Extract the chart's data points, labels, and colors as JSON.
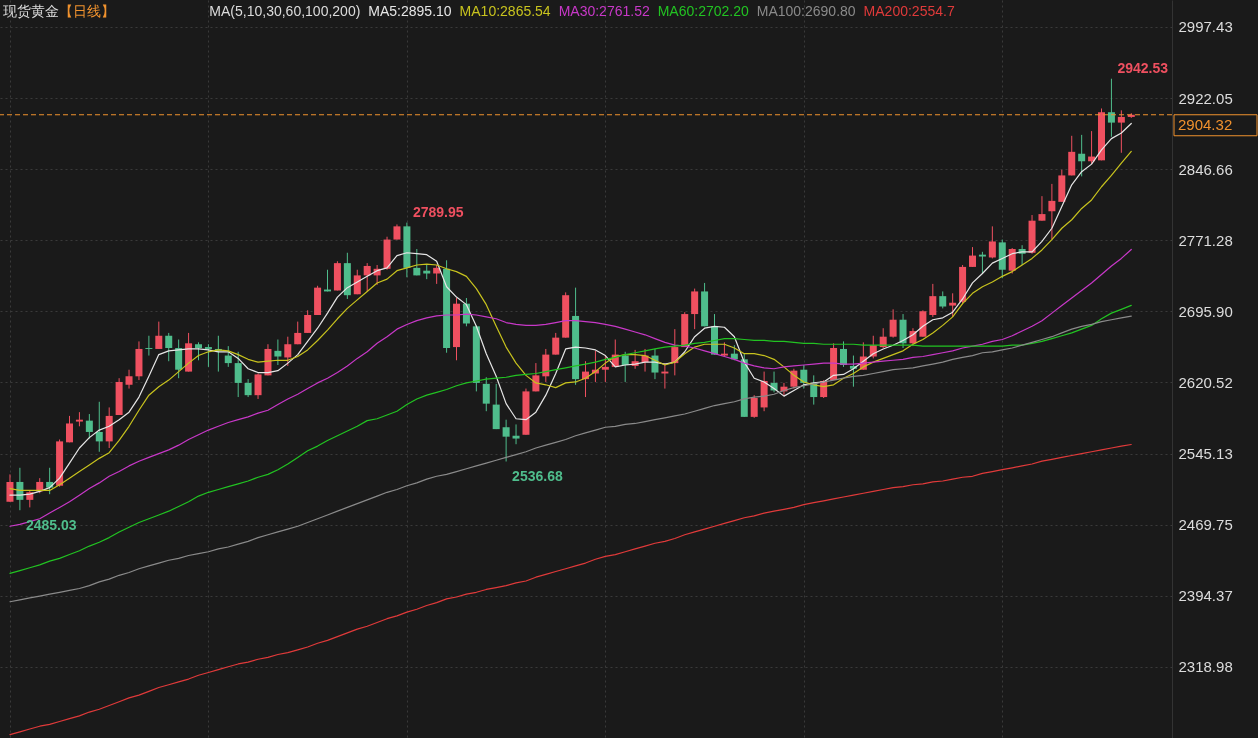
{
  "chart_data": {
    "type": "candlestick",
    "title": "现货黄金",
    "subtitle": "【日线】",
    "legend_title": "MA(5,10,30,60,100,200)",
    "categories": [
      null,
      null,
      null,
      null,
      null,
      null,
      null,
      null,
      null,
      null,
      null,
      null,
      null,
      null,
      null,
      null,
      null,
      null,
      null,
      null,
      null,
      null,
      null,
      null,
      null,
      null,
      null,
      null,
      null,
      null,
      null,
      null,
      null,
      null,
      null,
      null,
      null,
      null,
      null,
      null,
      null,
      null,
      null,
      null,
      null,
      null,
      null,
      null,
      null,
      null,
      null,
      null,
      null,
      null,
      null,
      null,
      null,
      null,
      null,
      null,
      null,
      null,
      null,
      null,
      null,
      null,
      null,
      null,
      null,
      null,
      null,
      null,
      null,
      null,
      null,
      null,
      null,
      null,
      null,
      null,
      null,
      null,
      null,
      null,
      null,
      null,
      null,
      null,
      null,
      null,
      null,
      null,
      null,
      null,
      null,
      null,
      null,
      null,
      null,
      null,
      null,
      null,
      null,
      null,
      null,
      null,
      null,
      null,
      null,
      null,
      null,
      null,
      null,
      null
    ],
    "ohlc": [
      [
        2494,
        2523,
        2494,
        2515
      ],
      [
        2515,
        2530,
        2485.03,
        2496
      ],
      [
        2496,
        2506,
        2488,
        2504
      ],
      [
        2505,
        2519,
        2503,
        2515
      ],
      [
        2515,
        2530,
        2502,
        2509
      ],
      [
        2511,
        2560,
        2510,
        2558
      ],
      [
        2557,
        2585,
        2557,
        2577
      ],
      [
        2579,
        2589,
        2574,
        2581
      ],
      [
        2580,
        2587,
        2561,
        2568
      ],
      [
        2568,
        2600,
        2547,
        2558
      ],
      [
        2558,
        2594,
        2551,
        2585
      ],
      [
        2586,
        2625,
        2586,
        2621
      ],
      [
        2618,
        2634,
        2614,
        2627
      ],
      [
        2627,
        2664,
        2623,
        2656
      ],
      [
        2657,
        2670,
        2649,
        2656
      ],
      [
        2656,
        2685,
        2656,
        2670
      ],
      [
        2670,
        2673,
        2643,
        2657
      ],
      [
        2657,
        2666,
        2625,
        2634
      ],
      [
        2632,
        2673,
        2632,
        2662
      ],
      [
        2661,
        2663,
        2644,
        2657
      ],
      [
        2658,
        2661,
        2637,
        2656
      ],
      [
        2656,
        2670,
        2632,
        2654
      ],
      [
        2649,
        2659,
        2637,
        2641
      ],
      [
        2641,
        2653,
        2605,
        2620
      ],
      [
        2620,
        2624,
        2605,
        2607
      ],
      [
        2607,
        2630,
        2603,
        2629
      ],
      [
        2628,
        2661,
        2628,
        2656
      ],
      [
        2654,
        2666,
        2639,
        2648
      ],
      [
        2647,
        2669,
        2638,
        2661
      ],
      [
        2661,
        2685,
        2661,
        2673
      ],
      [
        2673,
        2697,
        2673,
        2692
      ],
      [
        2692,
        2723,
        2692,
        2721
      ],
      [
        2719,
        2740,
        2717,
        2717
      ],
      [
        2718,
        2749,
        2718,
        2747
      ],
      [
        2747,
        2758,
        2709,
        2713
      ],
      [
        2714,
        2740,
        2714,
        2734
      ],
      [
        2734,
        2747,
        2717,
        2744
      ],
      [
        2734,
        2745,
        2724,
        2741
      ],
      [
        2741,
        2775,
        2740,
        2772
      ],
      [
        2772,
        2788,
        2772,
        2786
      ],
      [
        2786,
        2789.95,
        2732,
        2742
      ],
      [
        2742,
        2762,
        2734,
        2734
      ],
      [
        2739,
        2745,
        2730,
        2736
      ],
      [
        2736,
        2745,
        2725,
        2742
      ],
      [
        2741,
        2750,
        2652,
        2657
      ],
      [
        2658,
        2710,
        2644,
        2704
      ],
      [
        2704,
        2710,
        2680,
        2683
      ],
      [
        2680,
        2681,
        2611,
        2620
      ],
      [
        2619,
        2626,
        2590,
        2598
      ],
      [
        2597,
        2619,
        2571,
        2571
      ],
      [
        2573,
        2581,
        2536.68,
        2563
      ],
      [
        2564,
        2576,
        2555,
        2561
      ],
      [
        2565,
        2614,
        2565,
        2611
      ],
      [
        2611,
        2641,
        2611,
        2628
      ],
      [
        2627,
        2656,
        2621,
        2650
      ],
      [
        2650,
        2673,
        2650,
        2668
      ],
      [
        2668,
        2716,
        2668,
        2713
      ],
      [
        2691,
        2721,
        2618,
        2624
      ],
      [
        2624,
        2643,
        2605,
        2632
      ],
      [
        2630,
        2654,
        2621,
        2634
      ],
      [
        2634,
        2649,
        2621,
        2637
      ],
      [
        2637,
        2666,
        2637,
        2650
      ],
      [
        2649,
        2653,
        2621,
        2639
      ],
      [
        2638,
        2655,
        2635,
        2643
      ],
      [
        2642,
        2656,
        2632,
        2649
      ],
      [
        2649,
        2656,
        2624,
        2631
      ],
      [
        2630,
        2641,
        2614,
        2632
      ],
      [
        2641,
        2677,
        2628,
        2658
      ],
      [
        2658,
        2695,
        2658,
        2693
      ],
      [
        2693,
        2720,
        2677,
        2717
      ],
      [
        2717,
        2726,
        2680,
        2680
      ],
      [
        2680,
        2693,
        2650,
        2650
      ],
      [
        2649,
        2663,
        2648,
        2651
      ],
      [
        2651,
        2660,
        2644,
        2645
      ],
      [
        2645,
        2651,
        2584,
        2584
      ],
      [
        2584,
        2607,
        2583,
        2604
      ],
      [
        2594,
        2632,
        2590,
        2622
      ],
      [
        2620,
        2632,
        2610,
        2612
      ],
      [
        2611,
        2620,
        2606,
        2616
      ],
      [
        2616,
        2635,
        2614,
        2633
      ],
      [
        2634,
        2639,
        2614,
        2620
      ],
      [
        2620,
        2628,
        2597,
        2605
      ],
      [
        2605,
        2623,
        2604,
        2622
      ],
      [
        2623,
        2662,
        2623,
        2657
      ],
      [
        2656,
        2664,
        2637,
        2639
      ],
      [
        2638,
        2649,
        2616,
        2635
      ],
      [
        2634,
        2663,
        2634,
        2648
      ],
      [
        2648,
        2670,
        2646,
        2660
      ],
      [
        2658,
        2678,
        2657,
        2669
      ],
      [
        2669,
        2698,
        2668,
        2687
      ],
      [
        2687,
        2693,
        2657,
        2662
      ],
      [
        2662,
        2678,
        2659,
        2675
      ],
      [
        2669,
        2697,
        2669,
        2696
      ],
      [
        2692,
        2725,
        2690,
        2712
      ],
      [
        2712,
        2717,
        2699,
        2701
      ],
      [
        2702,
        2715,
        2690,
        2705
      ],
      [
        2706,
        2745,
        2704,
        2743
      ],
      [
        2743,
        2764,
        2743,
        2755
      ],
      [
        2756,
        2759,
        2736,
        2754
      ],
      [
        2753,
        2786,
        2752,
        2770
      ],
      [
        2769,
        2772,
        2731,
        2740
      ],
      [
        2739,
        2763,
        2736,
        2762
      ],
      [
        2762,
        2766,
        2745,
        2757
      ],
      [
        2758,
        2798,
        2757,
        2792
      ],
      [
        2792,
        2818,
        2792,
        2799
      ],
      [
        2802,
        2831,
        2772,
        2813
      ],
      [
        2812,
        2846,
        2812,
        2840
      ],
      [
        2840,
        2882,
        2840,
        2865
      ],
      [
        2863,
        2883,
        2839,
        2855
      ],
      [
        2855,
        2887,
        2852,
        2860
      ],
      [
        2856,
        2911,
        2856,
        2907
      ],
      [
        2907,
        2942.53,
        2881,
        2896
      ],
      [
        2896,
        2909,
        2864,
        2902
      ],
      [
        2902,
        2906,
        2901,
        2904.32
      ]
    ],
    "colors": [
      "#ef5060",
      "#4fbd8c",
      "#ef5060",
      "#ef5060",
      "#4fbd8c",
      "#ef5060",
      "#ef5060",
      "#ef5060",
      "#4fbd8c",
      "#4fbd8c",
      "#ef5060",
      "#ef5060",
      "#ef5060",
      "#ef5060",
      "#4fbd8c",
      "#ef5060",
      "#4fbd8c",
      "#4fbd8c",
      "#ef5060",
      "#4fbd8c",
      "#4fbd8c",
      "#4fbd8c",
      "#4fbd8c",
      "#4fbd8c",
      "#4fbd8c",
      "#ef5060",
      "#ef5060",
      "#4fbd8c",
      "#ef5060",
      "#ef5060",
      "#ef5060",
      "#ef5060",
      "#4fbd8c",
      "#ef5060",
      "#4fbd8c",
      "#ef5060",
      "#ef5060",
      "#ef5060",
      "#ef5060",
      "#ef5060",
      "#4fbd8c",
      "#4fbd8c",
      "#4fbd8c",
      "#ef5060",
      "#4fbd8c",
      "#ef5060",
      "#4fbd8c",
      "#4fbd8c",
      "#4fbd8c",
      "#4fbd8c",
      "#4fbd8c",
      "#4fbd8c",
      "#ef5060",
      "#ef5060",
      "#ef5060",
      "#ef5060",
      "#ef5060",
      "#4fbd8c",
      "#ef5060",
      "#ef5060",
      "#ef5060",
      "#ef5060",
      "#4fbd8c",
      "#ef5060",
      "#ef5060",
      "#4fbd8c",
      "#ef5060",
      "#ef5060",
      "#ef5060",
      "#ef5060",
      "#4fbd8c",
      "#4fbd8c",
      "#ef5060",
      "#4fbd8c",
      "#4fbd8c",
      "#ef5060",
      "#ef5060",
      "#4fbd8c",
      "#ef5060",
      "#ef5060",
      "#4fbd8c",
      "#4fbd8c",
      "#ef5060",
      "#ef5060",
      "#4fbd8c",
      "#4fbd8c",
      "#ef5060",
      "#ef5060",
      "#ef5060",
      "#ef5060",
      "#4fbd8c",
      "#ef5060",
      "#ef5060",
      "#ef5060",
      "#4fbd8c",
      "#ef5060",
      "#ef5060",
      "#ef5060",
      "#4fbd8c",
      "#ef5060",
      "#4fbd8c",
      "#ef5060",
      "#4fbd8c",
      "#ef5060",
      "#ef5060",
      "#ef5060",
      "#ef5060",
      "#ef5060",
      "#4fbd8c",
      "#ef5060",
      "#ef5060",
      "#4fbd8c",
      "#ef5060",
      "#ef5060"
    ],
    "value_labels": [
      null,
      "2485.03",
      null,
      null,
      null,
      null,
      null,
      null,
      null,
      null,
      null,
      null,
      null,
      null,
      null,
      null,
      null,
      null,
      null,
      null,
      null,
      null,
      null,
      null,
      null,
      null,
      null,
      null,
      null,
      null,
      null,
      null,
      null,
      null,
      null,
      null,
      null,
      null,
      null,
      null,
      "2789.95",
      null,
      null,
      null,
      null,
      null,
      null,
      null,
      null,
      null,
      "2536.68",
      null,
      null,
      null,
      null,
      null,
      null,
      null,
      null,
      null,
      null,
      null,
      null,
      null,
      null,
      null,
      null,
      null,
      null,
      null,
      null,
      null,
      null,
      null,
      null,
      null,
      null,
      null,
      null,
      null,
      null,
      null,
      null,
      null,
      null,
      null,
      null,
      null,
      null,
      null,
      null,
      null,
      null,
      null,
      null,
      null,
      null,
      null,
      null,
      null,
      null,
      null,
      null,
      null,
      null,
      null,
      null,
      null,
      null,
      null,
      null,
      "2942.53",
      null,
      null
    ],
    "series": [
      {
        "type": "line",
        "name": "MA5:2895.10",
        "color": "#e6e6e6",
        "values": [
          2501,
          2501,
          2502,
          2505,
          2509,
          2519,
          2535,
          2551,
          2562,
          2570,
          2574,
          2581,
          2589,
          2605,
          2627,
          2650,
          2654,
          2655,
          2656,
          2656,
          2655,
          2653,
          2653,
          2646,
          2635,
          2631,
          2631,
          2633,
          2641,
          2650,
          2664,
          2678,
          2694,
          2711,
          2721,
          2727,
          2733,
          2739,
          2742,
          2755,
          2758,
          2757,
          2756,
          2749,
          2722,
          2711,
          2703,
          2680,
          2651,
          2627,
          2598,
          2582,
          2581,
          2589,
          2607,
          2630,
          2656,
          2658,
          2657,
          2655,
          2649,
          2637,
          2639,
          2640,
          2642,
          2642,
          2640,
          2642,
          2653,
          2669,
          2678,
          2680,
          2679,
          2669,
          2642,
          2625,
          2621,
          2614,
          2606,
          2612,
          2618,
          2620,
          2621,
          2628,
          2629,
          2635,
          2643,
          2651,
          2656,
          2660,
          2665,
          2671,
          2680,
          2687,
          2689,
          2695,
          2709,
          2726,
          2736,
          2747,
          2752,
          2757,
          2759,
          2759,
          2770,
          2784,
          2807,
          2830,
          2844,
          2852,
          2867,
          2879,
          2885,
          2895.1
        ]
      },
      {
        "type": "line",
        "name": "MA10:2865.54",
        "color": "#c8c31e",
        "values": [
          2508,
          2506,
          2506,
          2506,
          2506,
          2512,
          2519,
          2526,
          2533,
          2540,
          2546,
          2559,
          2574,
          2591,
          2607,
          2616,
          2623,
          2632,
          2641,
          2649,
          2653,
          2655,
          2654,
          2650,
          2645,
          2642,
          2643,
          2644,
          2644,
          2648,
          2655,
          2665,
          2676,
          2688,
          2699,
          2708,
          2717,
          2726,
          2730,
          2739,
          2742,
          2745,
          2746,
          2745,
          2741,
          2738,
          2733,
          2720,
          2703,
          2680,
          2658,
          2641,
          2628,
          2620,
          2618,
          2615,
          2620,
          2621,
          2625,
          2632,
          2641,
          2648,
          2650,
          2650,
          2649,
          2644,
          2639,
          2642,
          2651,
          2658,
          2661,
          2661,
          2661,
          2657,
          2651,
          2651,
          2649,
          2645,
          2637,
          2628,
          2621,
          2618,
          2616,
          2618,
          2625,
          2630,
          2637,
          2642,
          2646,
          2650,
          2654,
          2661,
          2666,
          2673,
          2681,
          2690,
          2704,
          2715,
          2722,
          2727,
          2733,
          2738,
          2745,
          2752,
          2761,
          2772,
          2784,
          2793,
          2805,
          2814,
          2828,
          2840,
          2853,
          2865.54
        ]
      },
      {
        "type": "line",
        "name": "MA30:2761.52",
        "color": "#c838c8",
        "values": [
          2468,
          2470,
          2473,
          2476,
          2482,
          2488,
          2494,
          2501,
          2508,
          2514,
          2521,
          2526,
          2532,
          2537,
          2541,
          2545,
          2549,
          2554,
          2560,
          2565,
          2570,
          2574,
          2578,
          2581,
          2584,
          2588,
          2591,
          2597,
          2603,
          2608,
          2614,
          2620,
          2625,
          2631,
          2638,
          2646,
          2653,
          2662,
          2669,
          2677,
          2682,
          2686,
          2689,
          2691,
          2692,
          2692,
          2693,
          2692,
          2690,
          2688,
          2684,
          2682,
          2681,
          2681,
          2682,
          2684,
          2686,
          2686,
          2685,
          2684,
          2682,
          2680,
          2677,
          2674,
          2671,
          2667,
          2663,
          2660,
          2659,
          2657,
          2654,
          2651,
          2648,
          2645,
          2641,
          2638,
          2636,
          2635,
          2637,
          2638,
          2639,
          2640,
          2641,
          2641,
          2640,
          2640,
          2641,
          2642,
          2643,
          2644,
          2645,
          2647,
          2648,
          2650,
          2652,
          2654,
          2657,
          2659,
          2661,
          2664,
          2666,
          2670,
          2675,
          2680,
          2686,
          2694,
          2702,
          2710,
          2718,
          2726,
          2735,
          2744,
          2752,
          2761.52
        ]
      },
      {
        "type": "line",
        "name": "MA60:2702.20",
        "color": "#22c322",
        "values": [
          2418,
          2421,
          2424,
          2427,
          2431,
          2434,
          2438,
          2442,
          2447,
          2451,
          2456,
          2462,
          2467,
          2472,
          2476,
          2480,
          2484,
          2489,
          2494,
          2500,
          2504,
          2507,
          2510,
          2513,
          2516,
          2520,
          2523,
          2528,
          2534,
          2541,
          2548,
          2553,
          2559,
          2564,
          2569,
          2574,
          2580,
          2582,
          2586,
          2590,
          2597,
          2603,
          2607,
          2610,
          2613,
          2617,
          2620,
          2622,
          2624,
          2625,
          2626,
          2628,
          2629,
          2630,
          2632,
          2634,
          2636,
          2638,
          2640,
          2642,
          2645,
          2647,
          2650,
          2652,
          2654,
          2656,
          2658,
          2659,
          2660,
          2662,
          2663,
          2665,
          2667,
          2667,
          2666,
          2665,
          2665,
          2664,
          2664,
          2663,
          2662,
          2662,
          2661,
          2661,
          2661,
          2661,
          2660,
          2660,
          2660,
          2660,
          2660,
          2660,
          2659,
          2659,
          2659,
          2659,
          2659,
          2659,
          2659,
          2659,
          2659,
          2660,
          2660,
          2662,
          2664,
          2667,
          2670,
          2673,
          2677,
          2681,
          2688,
          2694,
          2698,
          2702.2
        ]
      },
      {
        "type": "line",
        "name": "MA100:2690.80",
        "color": "#8a8a8a",
        "values": [
          2388,
          2390,
          2392,
          2394,
          2396,
          2398,
          2400,
          2402,
          2405,
          2409,
          2412,
          2416,
          2419,
          2423,
          2426,
          2429,
          2432,
          2434,
          2437,
          2439,
          2441,
          2444,
          2446,
          2449,
          2452,
          2456,
          2459,
          2462,
          2465,
          2468,
          2472,
          2476,
          2480,
          2484,
          2488,
          2492,
          2496,
          2500,
          2504,
          2507,
          2511,
          2514,
          2518,
          2521,
          2523,
          2526,
          2529,
          2532,
          2535,
          2538,
          2541,
          2544,
          2547,
          2551,
          2554,
          2557,
          2560,
          2564,
          2567,
          2570,
          2573,
          2574,
          2576,
          2577,
          2579,
          2581,
          2583,
          2585,
          2587,
          2590,
          2593,
          2596,
          2598,
          2600,
          2603,
          2605,
          2606,
          2608,
          2612,
          2615,
          2617,
          2619,
          2621,
          2623,
          2625,
          2627,
          2628,
          2630,
          2632,
          2634,
          2635,
          2636,
          2638,
          2640,
          2642,
          2645,
          2647,
          2649,
          2652,
          2653,
          2655,
          2657,
          2660,
          2663,
          2666,
          2669,
          2673,
          2677,
          2680,
          2682,
          2685,
          2687,
          2689,
          2690.8
        ]
      },
      {
        "type": "line",
        "name": "MA200:2554.7",
        "color": "#e03a3a",
        "values": [
          2247,
          2250,
          2253,
          2256,
          2258,
          2261,
          2264,
          2267,
          2271,
          2274,
          2278,
          2282,
          2286,
          2289,
          2293,
          2297,
          2300,
          2303,
          2306,
          2310,
          2313,
          2316,
          2319,
          2322,
          2324,
          2327,
          2329,
          2332,
          2334,
          2337,
          2340,
          2344,
          2347,
          2351,
          2355,
          2359,
          2362,
          2366,
          2370,
          2373,
          2377,
          2380,
          2384,
          2387,
          2391,
          2393,
          2396,
          2398,
          2401,
          2403,
          2405,
          2408,
          2410,
          2414,
          2417,
          2420,
          2423,
          2426,
          2429,
          2433,
          2436,
          2438,
          2441,
          2444,
          2447,
          2450,
          2452,
          2455,
          2459,
          2462,
          2465,
          2468,
          2471,
          2474,
          2477,
          2479,
          2482,
          2484,
          2486,
          2488,
          2491,
          2493,
          2495,
          2497,
          2499,
          2501,
          2503,
          2505,
          2507,
          2509,
          2510,
          2512,
          2513,
          2515,
          2516,
          2518,
          2520,
          2521,
          2524,
          2526,
          2528,
          2530,
          2532,
          2534,
          2537,
          2539,
          2541,
          2543,
          2545,
          2547,
          2549,
          2551,
          2553,
          2554.7
        ]
      }
    ],
    "ylim": [
      2243.5,
      3026.0
    ],
    "yticks": [
      2318.98,
      2394.37,
      2469.75,
      2545.13,
      2620.52,
      {
        "value": 2695.9,
        "label": "2695.90"
      },
      2771.28,
      2846.66,
      2922.05,
      2997.43
    ],
    "grid": true,
    "legend": "top",
    "tick_labels": "y",
    "ref_lines": [
      {
        "axis": "y",
        "value": 2904.32,
        "label": "2904.32",
        "color": "#f0922e",
        "line_style": "dashed"
      }
    ]
  }
}
